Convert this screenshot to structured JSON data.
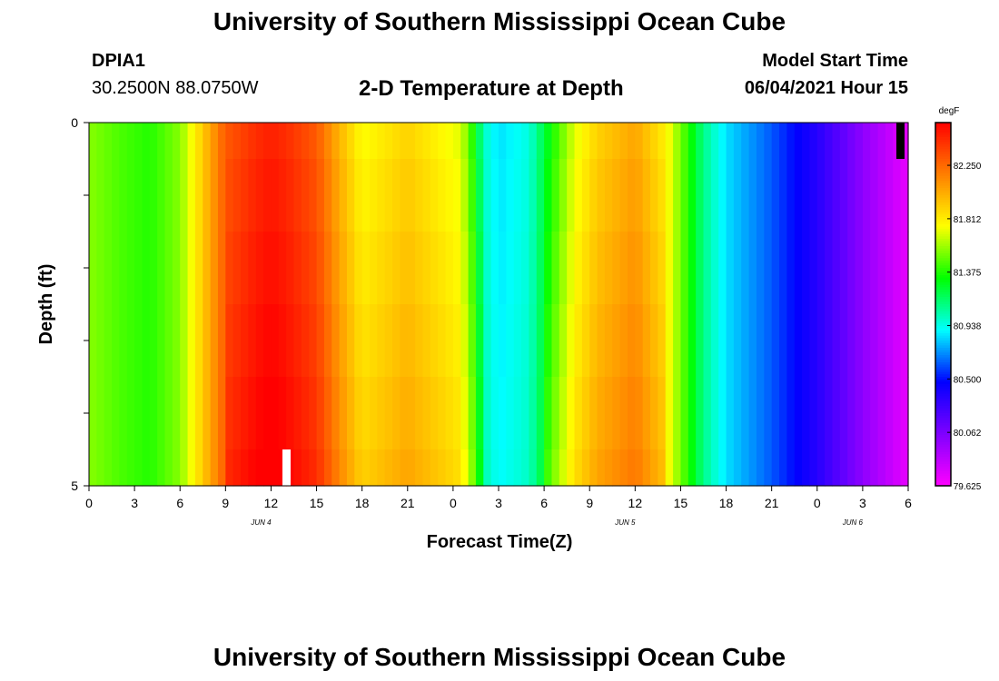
{
  "header": {
    "title_top": "University of Southern Mississippi Ocean Cube",
    "station_id": "DPIA1",
    "station_coords": "30.2500N  88.0750W",
    "plot_title": "2-D Temperature at Depth",
    "model_start_label": "Model Start Time",
    "model_start_value": "06/04/2021 Hour 15"
  },
  "footer": {
    "title_bottom": "University of Southern Mississippi Ocean Cube"
  },
  "chart_data": {
    "type": "heatmap",
    "title": "2-D Temperature at Depth",
    "xlabel": "Forecast Time(Z)",
    "ylabel": "Depth (ft)",
    "x_tick_labels": [
      "0",
      "3",
      "6",
      "9",
      "12",
      "15",
      "18",
      "21",
      "0",
      "3",
      "6",
      "9",
      "12",
      "15",
      "18",
      "21",
      "0",
      "3",
      "6"
    ],
    "x_range_hours": [
      0,
      54
    ],
    "day_labels": [
      {
        "text": "JUN 4",
        "hour": 12
      },
      {
        "text": "JUN 5",
        "hour": 36
      },
      {
        "text": "JUN 6",
        "hour": 51
      }
    ],
    "y_tick_labels": [
      "0",
      "5"
    ],
    "y_range": [
      0,
      5
    ],
    "depth_levels": [
      0.25,
      1,
      2,
      3,
      4,
      4.75
    ],
    "colorbar": {
      "unit": "degF",
      "min": 79.625,
      "max": 82.6,
      "tick_labels": [
        "82.250",
        "81.812",
        "81.375",
        "80.938",
        "80.500",
        "80.062",
        "79.625"
      ],
      "tick_values": [
        82.25,
        81.8125,
        81.375,
        80.9375,
        80.5,
        80.0625,
        79.625
      ],
      "colors": [
        "#ff00ff",
        "#7f00ff",
        "#0000ff",
        "#00ffff",
        "#00ff00",
        "#ffff00",
        "#ff7f00",
        "#ff0000"
      ]
    },
    "temperature_profile_by_hour": [
      {
        "hour": 0,
        "value": 81.55
      },
      {
        "hour": 2,
        "value": 81.45
      },
      {
        "hour": 4,
        "value": 81.38
      },
      {
        "hour": 6,
        "value": 81.55
      },
      {
        "hour": 7,
        "value": 81.8
      },
      {
        "hour": 8,
        "value": 82.05
      },
      {
        "hour": 9,
        "value": 82.3
      },
      {
        "hour": 11,
        "value": 82.45
      },
      {
        "hour": 12,
        "value": 82.5
      },
      {
        "hour": 13,
        "value": 82.45
      },
      {
        "hour": 15,
        "value": 82.3
      },
      {
        "hour": 16.5,
        "value": 82.0
      },
      {
        "hour": 18,
        "value": 81.75
      },
      {
        "hour": 21,
        "value": 81.9
      },
      {
        "hour": 24.5,
        "value": 81.7
      },
      {
        "hour": 25.5,
        "value": 81.3
      },
      {
        "hour": 26,
        "value": 81.0
      },
      {
        "hour": 27,
        "value": 80.85
      },
      {
        "hour": 29,
        "value": 80.95
      },
      {
        "hour": 30.5,
        "value": 81.35
      },
      {
        "hour": 32,
        "value": 81.7
      },
      {
        "hour": 33.5,
        "value": 81.9
      },
      {
        "hour": 36,
        "value": 82.05
      },
      {
        "hour": 38,
        "value": 81.8
      },
      {
        "hour": 40.5,
        "value": 81.1
      },
      {
        "hour": 42,
        "value": 80.85
      },
      {
        "hour": 45,
        "value": 80.62
      },
      {
        "hour": 48,
        "value": 80.35
      },
      {
        "hour": 51,
        "value": 80.0
      },
      {
        "hour": 54,
        "value": 79.7
      }
    ]
  }
}
